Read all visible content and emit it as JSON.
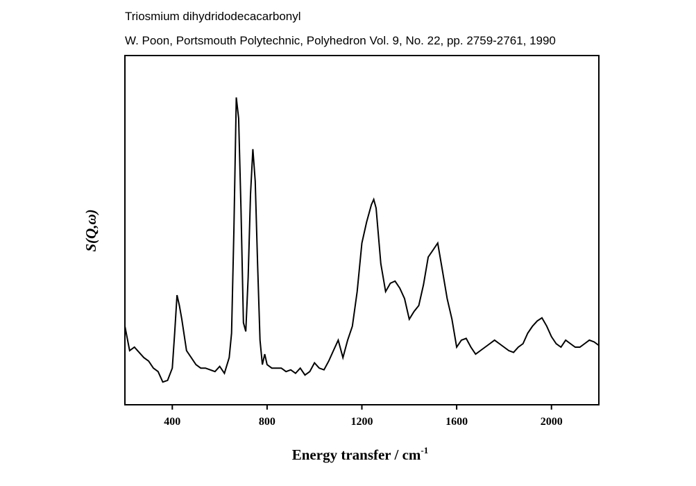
{
  "chart_data": {
    "type": "line",
    "title": "Triosmium dihydridodecacarbonyl",
    "subtitle": "W. Poon, Portsmouth Polytechnic, Polyhedron Vol. 9, No. 22, pp. 2759-2761, 1990",
    "x_label": "Energy transfer / cm",
    "x_label_exponent": "-1",
    "y_label": "S(Q,ω)",
    "xlim": [
      200,
      2200
    ],
    "ylim": [
      0,
      100
    ],
    "xticks": [
      400,
      800,
      1200,
      1600,
      2000
    ],
    "color": "#000000",
    "x": [
      200,
      220,
      240,
      260,
      280,
      300,
      320,
      340,
      360,
      380,
      400,
      410,
      420,
      430,
      440,
      460,
      480,
      500,
      520,
      540,
      560,
      580,
      600,
      620,
      640,
      650,
      660,
      670,
      680,
      690,
      700,
      710,
      720,
      730,
      740,
      750,
      760,
      770,
      780,
      790,
      800,
      820,
      840,
      860,
      880,
      900,
      920,
      940,
      960,
      980,
      1000,
      1020,
      1040,
      1060,
      1080,
      1100,
      1120,
      1140,
      1160,
      1180,
      1200,
      1220,
      1240,
      1250,
      1260,
      1280,
      1300,
      1320,
      1340,
      1360,
      1380,
      1400,
      1420,
      1440,
      1460,
      1480,
      1500,
      1520,
      1540,
      1560,
      1580,
      1600,
      1620,
      1640,
      1660,
      1680,
      1700,
      1720,
      1740,
      1760,
      1780,
      1800,
      1820,
      1840,
      1860,
      1880,
      1900,
      1920,
      1940,
      1960,
      1980,
      2000,
      2020,
      2040,
      2060,
      2080,
      2100,
      2120,
      2140,
      2160,
      2180,
      2200
    ],
    "values": [
      22.5,
      15.5,
      16.5,
      15,
      13.5,
      12.5,
      10.5,
      9.5,
      6.5,
      7,
      10.5,
      20.5,
      31.4,
      28.4,
      24.5,
      15.5,
      13.5,
      11.5,
      10.5,
      10.5,
      10,
      9.5,
      11,
      9,
      13.5,
      20.5,
      50.3,
      88,
      82,
      56,
      23.5,
      21,
      36.4,
      60.2,
      73.2,
      64,
      40.4,
      18.5,
      11.5,
      14.5,
      11.5,
      10.5,
      10.5,
      10.5,
      9.5,
      10,
      9,
      10.5,
      8.5,
      9.5,
      12,
      10.5,
      10,
      12.5,
      15.5,
      18.5,
      13.5,
      18.5,
      22.5,
      32.4,
      46.3,
      52.3,
      57.3,
      58.8,
      56.3,
      40.4,
      32.4,
      34.8,
      35.4,
      33.4,
      30.4,
      24.5,
      26.7,
      28.4,
      34.4,
      42.3,
      44.3,
      46.3,
      38.4,
      30.4,
      24.5,
      16.5,
      18.5,
      19,
      16.5,
      14.5,
      15.5,
      16.5,
      17.5,
      18.5,
      17.5,
      16.5,
      15.5,
      15,
      16.5,
      17.5,
      20.5,
      22.5,
      24,
      24.9,
      22.5,
      19.5,
      17.5,
      16.5,
      18.5,
      17.5,
      16.5,
      16.5,
      17.5,
      18.5,
      18,
      17
    ]
  }
}
